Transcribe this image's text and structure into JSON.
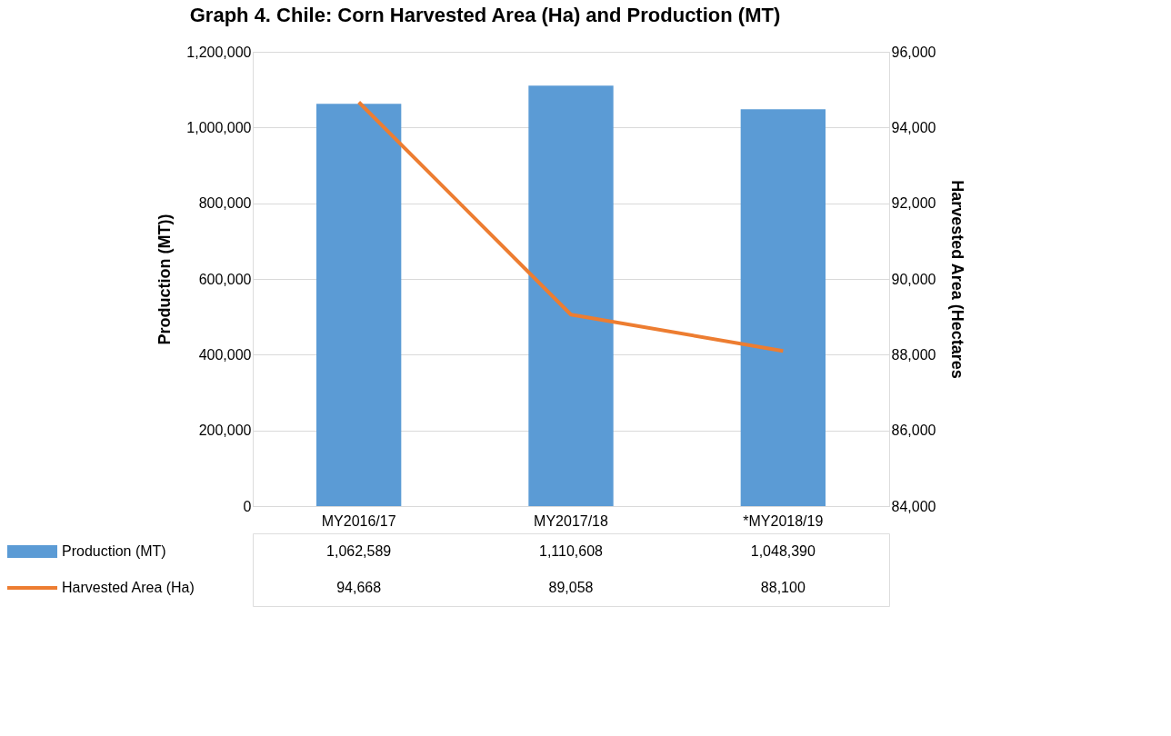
{
  "chart_data": {
    "type": "bar",
    "title": "Graph 4. Chile: Corn Harvested Area (Ha) and Production (MT)",
    "ylabel": "Production (MT))",
    "y2label": "Harvested Area (Hectares",
    "categories": [
      "MY2016/17",
      "MY2017/18",
      "*MY2018/19"
    ],
    "series": [
      {
        "name": "Production (MT)",
        "color": "#5b9bd5",
        "values": [
          1062589,
          1110608,
          1048390
        ],
        "value_labels": [
          "1,062,589",
          "1,110,608",
          "1,048,390"
        ]
      },
      {
        "name": "Harvested Area (Ha)",
        "type": "line",
        "axis": "y2",
        "color": "#ed7d31",
        "values": [
          94668,
          89058,
          88100
        ],
        "value_labels": [
          "94,668",
          "89,058",
          "88,100"
        ]
      }
    ],
    "ylim": [
      0,
      1200000
    ],
    "yticks": [
      0,
      {
        "value": 200000,
        "label": "200,000"
      },
      {
        "value": 400000,
        "label": "400,000"
      },
      {
        "value": 600000,
        "label": "600,000"
      },
      {
        "value": 800000,
        "label": "800,000"
      },
      {
        "value": 1000000,
        "label": "1,000,000"
      },
      {
        "value": 1200000,
        "label": "1,200,000"
      }
    ],
    "y2lim": [
      84000,
      96000
    ],
    "y2ticks": [
      {
        "value": 84000,
        "label": "84,000"
      },
      {
        "value": 86000,
        "label": "86,000"
      },
      {
        "value": 88000,
        "label": "88,000"
      },
      {
        "value": 90000,
        "label": "90,000"
      },
      {
        "value": 92000,
        "label": "92,000"
      },
      {
        "value": 94000,
        "label": "94,000"
      },
      {
        "value": 96000,
        "label": "96,000"
      }
    ],
    "grid": "y",
    "legend": "bottom"
  }
}
